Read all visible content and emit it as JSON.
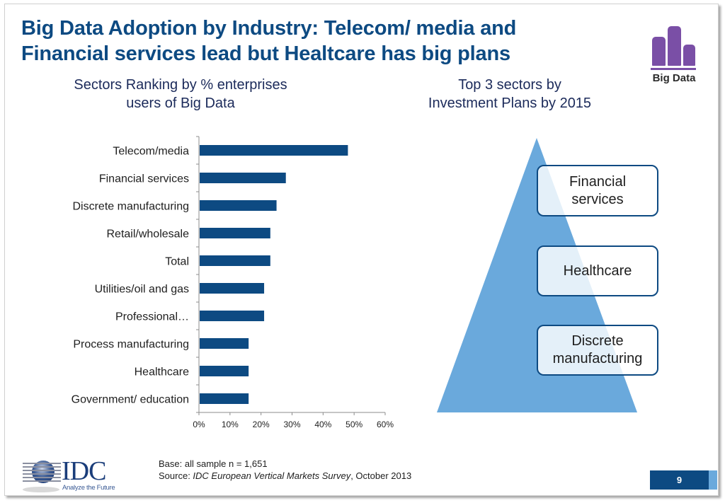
{
  "slide": {
    "title_lines": [
      "Big Data Adoption by Industry: Telecom/ media and",
      "Financial services lead but Healtcare has big plans"
    ],
    "logo_text": "Big Data",
    "page_number": "9",
    "colors": {
      "title": "#0d4a82",
      "bar": "#0d4a82",
      "pyramid": "#6aa9dc",
      "logo": "#7a4fa6"
    }
  },
  "left_panel": {
    "subtitle_lines": [
      "Sectors Ranking by % enterprises",
      "users of Big Data"
    ]
  },
  "right_panel": {
    "subtitle_lines": [
      "Top 3 sectors by",
      "Investment Plans by 2015"
    ],
    "pyramid_items": [
      {
        "lines": [
          "Financial",
          "services"
        ]
      },
      {
        "lines": [
          "Healthcare"
        ]
      },
      {
        "lines": [
          "Discrete",
          "manufacturing"
        ]
      }
    ]
  },
  "footer": {
    "base": "Base: all sample n = 1,651",
    "source_prefix": "Source: ",
    "source_title": "IDC European Vertical Markets Survey",
    "source_suffix": ", October 2013",
    "idc_word": "IDC",
    "idc_tagline": "Analyze the Future"
  },
  "chart_data": {
    "type": "bar",
    "orientation": "horizontal",
    "title": "Sectors Ranking by % enterprises users of Big Data",
    "xlabel": "",
    "ylabel": "",
    "categories": [
      "Telecom/media",
      "Financial services",
      "Discrete manufacturing",
      "Retail/wholesale",
      "Total",
      "Utilities/oil and gas",
      "Professional…",
      "Process manufacturing",
      "Healthcare",
      "Government/ education"
    ],
    "values": [
      48,
      28,
      25,
      23,
      23,
      21,
      21,
      16,
      16,
      16
    ],
    "value_unit": "%",
    "xlim": [
      0,
      60
    ],
    "xticks": [
      0,
      10,
      20,
      30,
      40,
      50,
      60
    ],
    "xtick_labels": [
      "0%",
      "10%",
      "20%",
      "30%",
      "40%",
      "50%",
      "60%"
    ],
    "grid": false,
    "legend": "none"
  }
}
